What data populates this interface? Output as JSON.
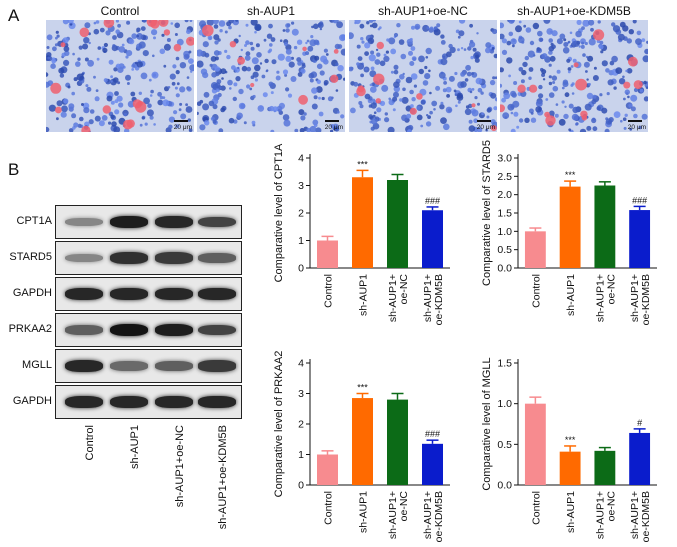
{
  "panels": {
    "a": "A",
    "b": "B"
  },
  "micrographs": [
    {
      "title": "Control",
      "scale": "20 μm",
      "tint": "#6f86c6",
      "red_density": 0.8
    },
    {
      "title": "sh-AUP1",
      "scale": "20 μm",
      "tint": "#8ea3d4",
      "red_density": 0.2
    },
    {
      "title": "sh-AUP1+oe-NC",
      "scale": "20 μm",
      "tint": "#7f96cd",
      "red_density": 0.3
    },
    {
      "title": "sh-AUP1+oe-KDM5B",
      "scale": "20 μm",
      "tint": "#8098cc",
      "red_density": 0.5
    }
  ],
  "blot": {
    "rows": [
      {
        "label": "CPT1A",
        "intensity": [
          0.35,
          0.9,
          0.85,
          0.7
        ]
      },
      {
        "label": "STARD5",
        "intensity": [
          0.35,
          0.8,
          0.75,
          0.55
        ]
      },
      {
        "label": "GAPDH",
        "intensity": [
          0.85,
          0.85,
          0.85,
          0.85
        ]
      },
      {
        "label": "PRKAA2",
        "intensity": [
          0.55,
          0.95,
          0.9,
          0.7
        ]
      },
      {
        "label": "MGLL",
        "intensity": [
          0.85,
          0.5,
          0.55,
          0.75
        ]
      },
      {
        "label": "GAPDH",
        "intensity": [
          0.85,
          0.85,
          0.85,
          0.85
        ]
      }
    ],
    "lanes": [
      "Control",
      "sh-AUP1",
      "sh-AUP1+oe-NC",
      "sh-AUP1+oe-KDM5B"
    ]
  },
  "chart_data": [
    {
      "type": "bar",
      "ylabel": "Comparative level of CPT1A",
      "categories": [
        "Control",
        "sh-AUP1",
        "sh-AUP1+\noe-NC",
        "sh-AUP1+\noe-KDM5B"
      ],
      "values": [
        1.0,
        3.3,
        3.2,
        2.1
      ],
      "errors": [
        0.15,
        0.25,
        0.2,
        0.12
      ],
      "annotations": [
        "",
        "***",
        "",
        "###"
      ],
      "ylim": [
        0,
        4
      ],
      "yticks": [
        "0",
        "1",
        "2",
        "3",
        "4"
      ],
      "colors": [
        "#f78b8f",
        "#ff6a00",
        "#0c6b17",
        "#0a1ccc"
      ]
    },
    {
      "type": "bar",
      "ylabel": "Comparative level of STARD5",
      "categories": [
        "Control",
        "sh-AUP1",
        "sh-AUP1+\noe-NC",
        "sh-AUP1+\noe-KDM5B"
      ],
      "values": [
        1.0,
        2.22,
        2.25,
        1.58
      ],
      "errors": [
        0.09,
        0.15,
        0.1,
        0.1
      ],
      "annotations": [
        "",
        "***",
        "",
        "###"
      ],
      "ylim": [
        0,
        3.0
      ],
      "yticks": [
        "0.0",
        "0.5",
        "1.0",
        "1.5",
        "2.0",
        "2.5",
        "3.0"
      ],
      "colors": [
        "#f78b8f",
        "#ff6a00",
        "#0c6b17",
        "#0a1ccc"
      ]
    },
    {
      "type": "bar",
      "ylabel": "Comparative level of PRKAA2",
      "categories": [
        "Control",
        "sh-AUP1",
        "sh-AUP1+\noe-NC",
        "sh-AUP1+\noe-KDM5B"
      ],
      "values": [
        1.0,
        2.85,
        2.8,
        1.35
      ],
      "errors": [
        0.12,
        0.15,
        0.2,
        0.12
      ],
      "annotations": [
        "",
        "***",
        "",
        "###"
      ],
      "ylim": [
        0,
        4
      ],
      "yticks": [
        "0",
        "1",
        "2",
        "3",
        "4"
      ],
      "colors": [
        "#f78b8f",
        "#ff6a00",
        "#0c6b17",
        "#0a1ccc"
      ]
    },
    {
      "type": "bar",
      "ylabel": "Comparative level of MGLL",
      "categories": [
        "Control",
        "sh-AUP1",
        "sh-AUP1+\noe-NC",
        "sh-AUP1+\noe-KDM5B"
      ],
      "values": [
        1.0,
        0.41,
        0.42,
        0.64
      ],
      "errors": [
        0.08,
        0.07,
        0.04,
        0.05
      ],
      "annotations": [
        "",
        "***",
        "",
        "#"
      ],
      "ylim": [
        0,
        1.5
      ],
      "yticks": [
        "0.0",
        "0.5",
        "1.0",
        "1.5"
      ],
      "colors": [
        "#f78b8f",
        "#ff6a00",
        "#0c6b17",
        "#0a1ccc"
      ]
    }
  ]
}
